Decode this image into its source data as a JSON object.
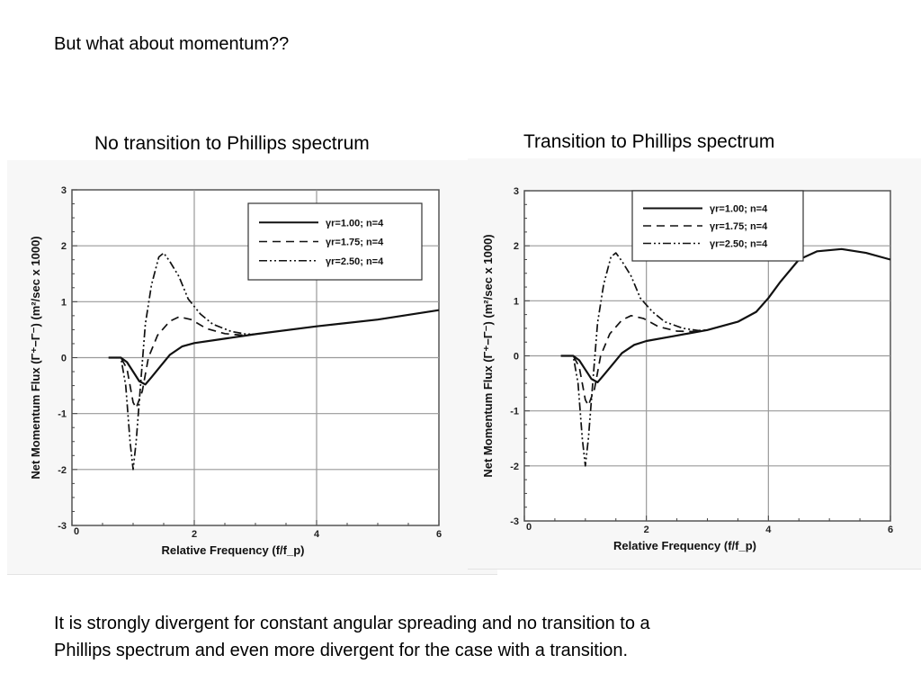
{
  "slide": {
    "heading": "But what about momentum??",
    "bottom_text": "It is strongly divergent for constant angular spreading and no transition to a\n Phillips spectrum and even more divergent for the case with a transition."
  },
  "chart_data": [
    {
      "type": "line",
      "caption": "No transition to Phillips spectrum",
      "xlabel": "Relative Frequency (f/f_p)",
      "ylabel": "Net Momentum Flux  (Γ⁺−Γ⁻)  (m²/sec  x 1000)",
      "xlim": [
        0,
        6
      ],
      "ylim": [
        -3,
        3
      ],
      "xticks": [
        0,
        2,
        4,
        6
      ],
      "yticks": [
        -3,
        -2,
        -1,
        0,
        1,
        2,
        3
      ],
      "grid": true,
      "legend_position": "top-right",
      "series": [
        {
          "name": "γr=1.00;  n=4",
          "style": "solid",
          "points": [
            [
              0.6,
              0
            ],
            [
              0.8,
              0
            ],
            [
              0.9,
              -0.08
            ],
            [
              1.0,
              -0.25
            ],
            [
              1.1,
              -0.42
            ],
            [
              1.2,
              -0.48
            ],
            [
              1.3,
              -0.35
            ],
            [
              1.45,
              -0.15
            ],
            [
              1.6,
              0.05
            ],
            [
              1.8,
              0.2
            ],
            [
              2.0,
              0.26
            ],
            [
              2.5,
              0.34
            ],
            [
              3.0,
              0.42
            ],
            [
              4.0,
              0.56
            ],
            [
              5.0,
              0.68
            ],
            [
              6.0,
              0.85
            ]
          ]
        },
        {
          "name": "γr=1.75;  n=4",
          "style": "dashed",
          "points": [
            [
              0.6,
              0
            ],
            [
              0.8,
              0
            ],
            [
              0.9,
              -0.2
            ],
            [
              1.0,
              -0.8
            ],
            [
              1.05,
              -0.9
            ],
            [
              1.15,
              -0.6
            ],
            [
              1.25,
              0
            ],
            [
              1.4,
              0.4
            ],
            [
              1.6,
              0.65
            ],
            [
              1.75,
              0.73
            ],
            [
              1.95,
              0.68
            ],
            [
              2.2,
              0.52
            ],
            [
              2.5,
              0.43
            ],
            [
              2.8,
              0.4
            ],
            [
              3.0,
              0.42
            ]
          ]
        },
        {
          "name": "γr=2.50;  n=4",
          "style": "dashdotdot",
          "points": [
            [
              0.6,
              0
            ],
            [
              0.8,
              0
            ],
            [
              0.88,
              -0.5
            ],
            [
              0.95,
              -1.5
            ],
            [
              1.0,
              -2.0
            ],
            [
              1.05,
              -1.5
            ],
            [
              1.12,
              -0.5
            ],
            [
              1.2,
              0.6
            ],
            [
              1.3,
              1.3
            ],
            [
              1.42,
              1.8
            ],
            [
              1.5,
              1.87
            ],
            [
              1.6,
              1.72
            ],
            [
              1.75,
              1.45
            ],
            [
              1.9,
              1.05
            ],
            [
              2.1,
              0.78
            ],
            [
              2.3,
              0.6
            ],
            [
              2.6,
              0.47
            ],
            [
              2.85,
              0.42
            ],
            [
              3.0,
              0.42
            ]
          ]
        }
      ]
    },
    {
      "type": "line",
      "caption": "Transition to Phillips spectrum",
      "xlabel": "Relative Frequency (f/f_p)",
      "ylabel": "Net Momentum Flux  (Γ⁺−Γ⁻)  (m²/sec  x 1000)",
      "xlim": [
        0,
        6
      ],
      "ylim": [
        -3,
        3
      ],
      "xticks": [
        0,
        2,
        4,
        6
      ],
      "yticks": [
        -3,
        -2,
        -1,
        0,
        1,
        2,
        3
      ],
      "grid": true,
      "legend_position": "top-left-center",
      "series": [
        {
          "name": "γr=1.00;  n=4",
          "style": "solid",
          "points": [
            [
              0.6,
              0
            ],
            [
              0.8,
              0
            ],
            [
              0.9,
              -0.08
            ],
            [
              1.0,
              -0.25
            ],
            [
              1.1,
              -0.42
            ],
            [
              1.2,
              -0.48
            ],
            [
              1.3,
              -0.35
            ],
            [
              1.45,
              -0.15
            ],
            [
              1.6,
              0.05
            ],
            [
              1.8,
              0.2
            ],
            [
              2.0,
              0.27
            ],
            [
              2.5,
              0.37
            ],
            [
              3.0,
              0.47
            ],
            [
              3.5,
              0.62
            ],
            [
              3.8,
              0.8
            ],
            [
              4.0,
              1.05
            ],
            [
              4.2,
              1.35
            ],
            [
              4.5,
              1.75
            ],
            [
              4.8,
              1.9
            ],
            [
              5.2,
              1.94
            ],
            [
              5.6,
              1.87
            ],
            [
              6.0,
              1.75
            ]
          ]
        },
        {
          "name": "γr=1.75;  n=4",
          "style": "dashed",
          "points": [
            [
              0.6,
              0
            ],
            [
              0.8,
              0
            ],
            [
              0.9,
              -0.2
            ],
            [
              1.0,
              -0.8
            ],
            [
              1.05,
              -0.9
            ],
            [
              1.15,
              -0.6
            ],
            [
              1.25,
              0
            ],
            [
              1.4,
              0.4
            ],
            [
              1.6,
              0.65
            ],
            [
              1.75,
              0.73
            ],
            [
              1.95,
              0.68
            ],
            [
              2.2,
              0.53
            ],
            [
              2.5,
              0.45
            ],
            [
              2.8,
              0.44
            ],
            [
              3.0,
              0.47
            ]
          ]
        },
        {
          "name": "γr=2.50;  n=4",
          "style": "dashdotdot",
          "points": [
            [
              0.6,
              0
            ],
            [
              0.8,
              0
            ],
            [
              0.88,
              -0.5
            ],
            [
              0.95,
              -1.5
            ],
            [
              1.0,
              -2.0
            ],
            [
              1.05,
              -1.5
            ],
            [
              1.12,
              -0.5
            ],
            [
              1.2,
              0.6
            ],
            [
              1.3,
              1.3
            ],
            [
              1.42,
              1.8
            ],
            [
              1.5,
              1.87
            ],
            [
              1.6,
              1.72
            ],
            [
              1.75,
              1.45
            ],
            [
              1.9,
              1.05
            ],
            [
              2.1,
              0.8
            ],
            [
              2.3,
              0.62
            ],
            [
              2.6,
              0.5
            ],
            [
              2.85,
              0.46
            ],
            [
              3.0,
              0.47
            ]
          ]
        }
      ]
    }
  ]
}
